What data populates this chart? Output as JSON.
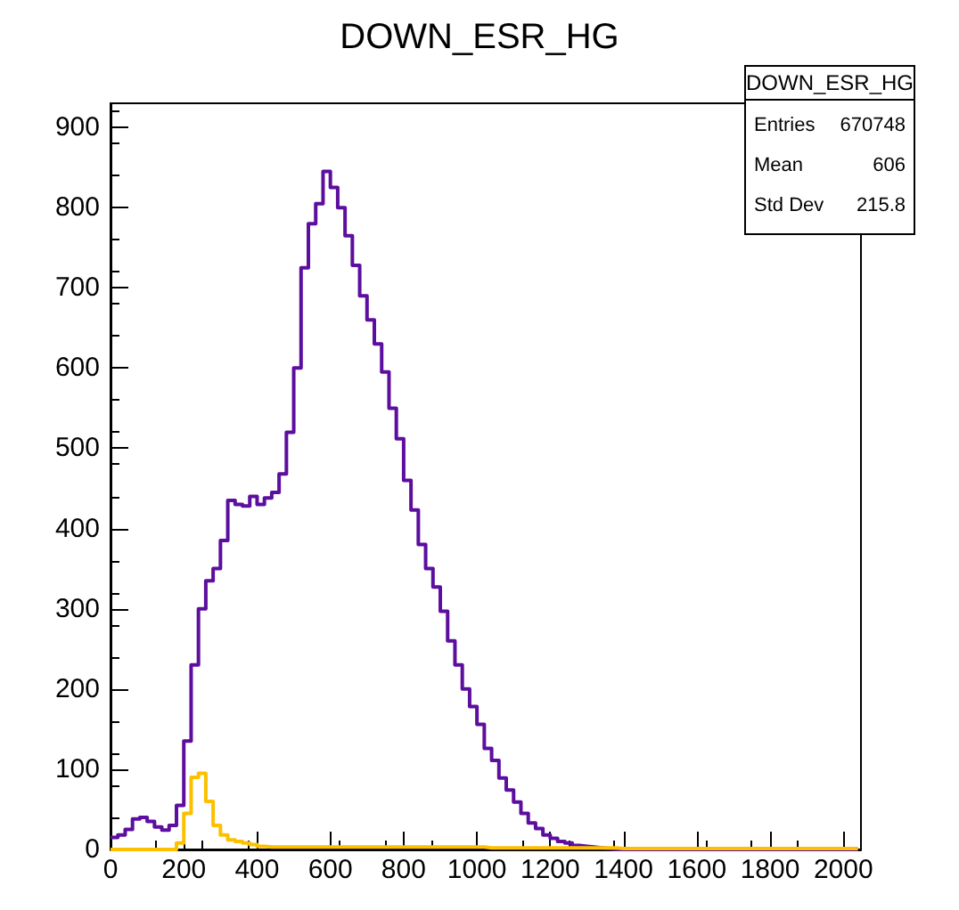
{
  "chart_data": {
    "type": "histogram",
    "title": "DOWN_ESR_HG",
    "bins": [
      0,
      20,
      40,
      60,
      80,
      100,
      120,
      140,
      160,
      180,
      200,
      220,
      240,
      260,
      280,
      300,
      320,
      340,
      360,
      380,
      400,
      420,
      440,
      460,
      480,
      500,
      520,
      540,
      560,
      580,
      600,
      620,
      640,
      660,
      680,
      700,
      720,
      740,
      760,
      780,
      800,
      820,
      840,
      860,
      880,
      900,
      920,
      940,
      960,
      980,
      1000,
      1020,
      1040,
      1060,
      1080,
      1100,
      1120,
      1140,
      1160,
      1180,
      1200,
      1220,
      1240,
      1260,
      1280,
      1300,
      1320,
      1340,
      1360,
      1380,
      1400,
      1420,
      1440,
      1460,
      1480,
      1500,
      1520,
      1540,
      1560,
      1580,
      1600,
      1620,
      1640,
      1660,
      1680,
      1700,
      1720,
      1740,
      1760,
      1780,
      1800,
      1820,
      1840,
      1860,
      1880,
      1900,
      1920,
      1940,
      1960,
      1980,
      2000,
      2020,
      2040
    ],
    "series": [
      {
        "color": "#5c0e9e",
        "values": [
          15,
          18,
          25,
          38,
          40,
          35,
          28,
          24,
          30,
          55,
          135,
          230,
          300,
          335,
          350,
          385,
          435,
          430,
          428,
          440,
          430,
          438,
          445,
          468,
          520,
          600,
          725,
          780,
          805,
          845,
          825,
          800,
          765,
          728,
          690,
          660,
          630,
          595,
          550,
          512,
          460,
          423,
          380,
          350,
          327,
          297,
          260,
          230,
          200,
          178,
          156,
          126,
          111,
          89,
          74,
          59,
          45,
          33,
          26,
          18,
          14,
          10,
          8,
          5,
          4,
          3,
          2,
          1,
          0,
          0,
          0,
          0,
          0,
          0,
          0,
          0,
          0,
          0,
          0,
          0,
          0,
          0,
          0,
          0,
          0,
          0,
          0,
          0,
          0,
          0,
          0,
          0,
          0,
          0,
          0,
          0,
          0,
          0,
          0,
          0,
          0,
          0
        ]
      },
      {
        "color": "#fcc000",
        "values": [
          0,
          0,
          0,
          0,
          0,
          0,
          0,
          0,
          0,
          8,
          45,
          90,
          95,
          60,
          30,
          18,
          12,
          10,
          8,
          6,
          4,
          3,
          3,
          3,
          3,
          3,
          3,
          3,
          3,
          3,
          3,
          3,
          3,
          3,
          3,
          3,
          3,
          3,
          3,
          3,
          3,
          3,
          3,
          3,
          3,
          3,
          3,
          3,
          3,
          3,
          3,
          2,
          2,
          2,
          2,
          2,
          2,
          2,
          2,
          2,
          2,
          2,
          2,
          2,
          2,
          2,
          2,
          2,
          2,
          1,
          1,
          1,
          1,
          1,
          1,
          1,
          1,
          1,
          1,
          1,
          1,
          1,
          1,
          1,
          1,
          1,
          1,
          1,
          1,
          1,
          1,
          1,
          1,
          1,
          1,
          1,
          1,
          1,
          1,
          1,
          1,
          1
        ]
      }
    ],
    "xlim": [
      0,
      2048
    ],
    "xticks": [
      0,
      200,
      400,
      600,
      800,
      1000,
      1200,
      1400,
      1600,
      1800,
      2000
    ],
    "ylim": [
      0,
      930
    ],
    "yticks": [
      0,
      100,
      200,
      300,
      400,
      500,
      600,
      700,
      800,
      900
    ],
    "annotations": [
      "DOWN_ESR_HG",
      "Entries",
      "670748",
      "Mean",
      "606",
      "Std Dev",
      "215.8"
    ],
    "grid": false
  }
}
